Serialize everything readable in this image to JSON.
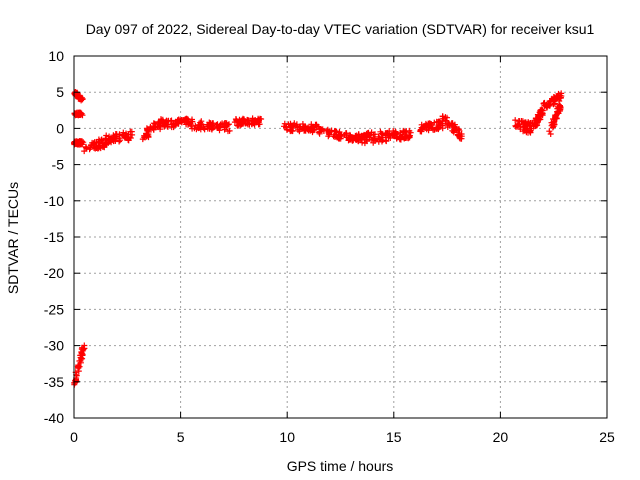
{
  "chart_data": {
    "type": "scatter",
    "title": "Day 097 of 2022, Sidereal Day-to-day VTEC variation (SDTVAR) for receiver ksu1",
    "xlabel": "GPS time / hours",
    "ylabel": "SDTVAR / TECUs",
    "xlim": [
      0,
      25
    ],
    "ylim": [
      -40,
      10
    ],
    "x_ticks": [
      0,
      5,
      10,
      15,
      20,
      25
    ],
    "y_ticks": [
      10,
      5,
      0,
      -5,
      -10,
      -15,
      -20,
      -25,
      -30,
      -35,
      -40
    ],
    "grid": true,
    "marker": "+",
    "series_color": "#ff0000",
    "segments": [
      {
        "x0": 0.0,
        "y0": 5.0,
        "x1": 0.4,
        "y1": 4.0,
        "spread": 0.5
      },
      {
        "x0": 0.0,
        "y0": 2.0,
        "x1": 0.35,
        "y1": 2.0,
        "spread": 0.4
      },
      {
        "x0": 0.0,
        "y0": -2.0,
        "x1": 0.4,
        "y1": -2.0,
        "spread": 0.5
      },
      {
        "x0": 0.5,
        "y0": -2.5,
        "x1": 1.5,
        "y1": -2.0,
        "spread": 1.3
      },
      {
        "x0": 1.5,
        "y0": -1.5,
        "x1": 2.7,
        "y1": -1.0,
        "spread": 1.2
      },
      {
        "x0": 3.2,
        "y0": -1.0,
        "x1": 4.3,
        "y1": 1.0,
        "spread": 1.3
      },
      {
        "x0": 4.3,
        "y0": 0.5,
        "x1": 5.5,
        "y1": 1.0,
        "spread": 1.0
      },
      {
        "x0": 5.5,
        "y0": 0.5,
        "x1": 7.3,
        "y1": 0.2,
        "spread": 1.2
      },
      {
        "x0": 7.5,
        "y0": 0.8,
        "x1": 8.8,
        "y1": 1.0,
        "spread": 1.0
      },
      {
        "x0": 9.9,
        "y0": 0.2,
        "x1": 11.5,
        "y1": 0.0,
        "spread": 1.1
      },
      {
        "x0": 11.5,
        "y0": -0.3,
        "x1": 13.3,
        "y1": -1.5,
        "spread": 1.0
      },
      {
        "x0": 13.3,
        "y0": -1.5,
        "x1": 14.8,
        "y1": -1.0,
        "spread": 1.5
      },
      {
        "x0": 14.8,
        "y0": -0.8,
        "x1": 15.8,
        "y1": -1.0,
        "spread": 1.3
      },
      {
        "x0": 16.2,
        "y0": 0.0,
        "x1": 17.3,
        "y1": 0.5,
        "spread": 1.2
      },
      {
        "x0": 17.3,
        "y0": 1.5,
        "x1": 18.2,
        "y1": -1.0,
        "spread": 1.2
      },
      {
        "x0": 20.6,
        "y0": 0.5,
        "x1": 21.5,
        "y1": 0.0,
        "spread": 1.5
      },
      {
        "x0": 21.6,
        "y0": 0.5,
        "x1": 22.0,
        "y1": 2.5,
        "spread": 1.0
      },
      {
        "x0": 22.0,
        "y0": 3.0,
        "x1": 22.9,
        "y1": 4.5,
        "spread": 1.0
      },
      {
        "x0": 22.3,
        "y0": -0.5,
        "x1": 22.8,
        "y1": 3.0,
        "spread": 0.8
      },
      {
        "x0": 0.0,
        "y0": -35.5,
        "x1": 0.45,
        "y1": -30.0,
        "spread": 0.6
      }
    ]
  }
}
